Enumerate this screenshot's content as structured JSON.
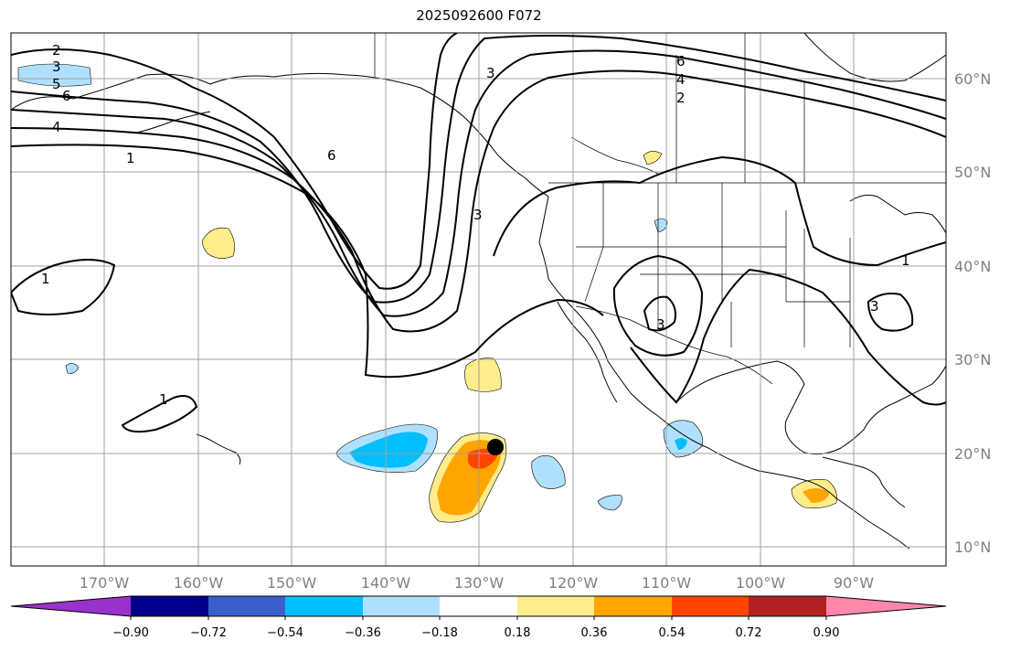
{
  "title": "2025092600 F072",
  "map": {
    "lon_labels": [
      "170°W",
      "160°W",
      "150°W",
      "140°W",
      "130°W",
      "120°W",
      "110°W",
      "100°W",
      "90°W"
    ],
    "lat_labels": [
      "60°N",
      "50°N",
      "40°N",
      "30°N",
      "20°N",
      "10°N"
    ],
    "contour_labels": [
      "2",
      "3",
      "5",
      "6",
      "4",
      "1",
      "6",
      "3",
      "6",
      "4",
      "2",
      "1",
      "1",
      "1",
      "3",
      "3",
      "3"
    ],
    "grid_color": "#a0a0a0",
    "storm_marker": "black-dot"
  },
  "colorbar": {
    "colors": [
      "#9932cc",
      "#00008b",
      "#3a5fcd",
      "#00bfff",
      "#b0e0ff",
      "#ffffff",
      "#ffec8b",
      "#ffa500",
      "#ff4500",
      "#b22222",
      "#ff88aa"
    ],
    "tick_labels": [
      "−0.90",
      "−0.72",
      "−0.54",
      "−0.36",
      "−0.18",
      "0.18",
      "0.36",
      "0.54",
      "0.72",
      "0.90"
    ]
  }
}
